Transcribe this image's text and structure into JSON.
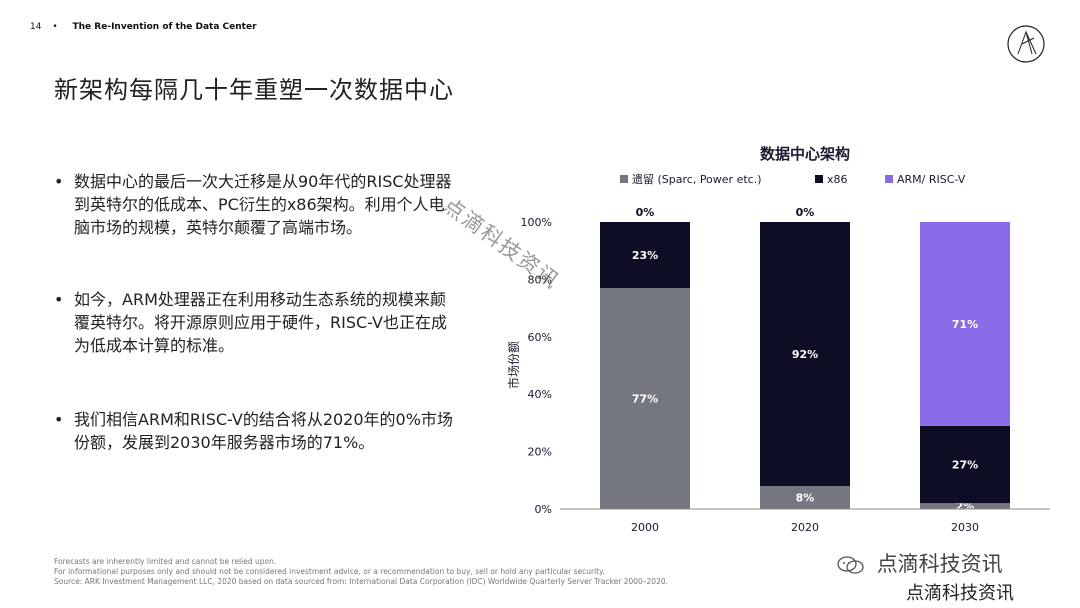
{
  "header": {
    "page_number": "14",
    "separator": "•",
    "deck_title": "The Re-Invention of the Data Center"
  },
  "slide_title": "新架构每隔几十年重塑一次数据中心",
  "bullets": [
    "数据中心的最后一次大迁移是从90年代的RISC处理器到英特尔的低成本、PC衍生的x86架构。利用个人电脑市场的规模，英特尔颠覆了高端市场。",
    "如今，ARM处理器正在利用移动生态系统的规模来颠覆英特尔。将开源原则应用于硬件，RISC-V也正在成为低成本计算的标准。",
    "我们相信ARM和RISC-V的结合将从2020年的0%市场份额，发展到2030年服务器市场的71%。"
  ],
  "watermark_diagonal": "点滴科技资讯",
  "watermark_wechat": "点滴科技资讯",
  "watermark_bottom": "点滴科技资讯",
  "footnotes": [
    "Forecasts are inherently limited and cannot be relied upon.",
    "For informational purposes only and should not be considered investment advice, or a recommendation to buy, sell or hold any particular security.",
    "Source: ARK Investment Management LLC, 2020 based on data sourced from: International Data Corporation (IDC) Worldwide Quarterly Server Tracker 2000–2020."
  ],
  "colors": {
    "legacy": "#74777f",
    "x86": "#0d0d26",
    "arm": "#8c6be8",
    "text": "#1a1a2e"
  },
  "chart_data": {
    "type": "bar",
    "stacked": true,
    "title": "数据中心架构",
    "ylabel": "市场份额",
    "xlabel": "",
    "ylim": [
      0,
      100
    ],
    "yticks": [
      "0%",
      "20%",
      "40%",
      "60%",
      "80%",
      "100%"
    ],
    "categories": [
      "2000",
      "2020",
      "2030"
    ],
    "series": [
      {
        "name": "遗留 (Sparc, Power etc.)",
        "values": [
          77,
          8,
          2
        ],
        "labels": [
          "77%",
          "8%",
          "2%"
        ],
        "color": "#74777f"
      },
      {
        "name": "x86",
        "values": [
          23,
          92,
          27
        ],
        "labels": [
          "23%",
          "92%",
          "27%"
        ],
        "color": "#0d0d26"
      },
      {
        "name": "ARM/ RISC-V",
        "values": [
          0,
          0,
          71
        ],
        "labels": [
          "0%",
          "0%",
          "71%"
        ],
        "color": "#8c6be8"
      }
    ],
    "legend_position": "top"
  }
}
